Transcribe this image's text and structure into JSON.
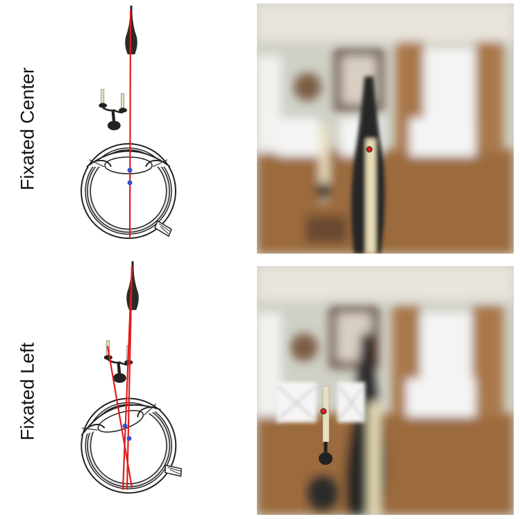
{
  "panels": [
    {
      "label": "Fixated Center"
    },
    {
      "label": "Fixated Left"
    }
  ],
  "colors": {
    "ray": "#e21b1b",
    "node": "#3a4fc8",
    "fixation_dot": "#e02020",
    "bottle": "#2a2a2a",
    "candle": "#e8dfbf",
    "floor": "#9b6a3e",
    "wall": "#cfd0c6",
    "curtain": "#a9774a"
  }
}
